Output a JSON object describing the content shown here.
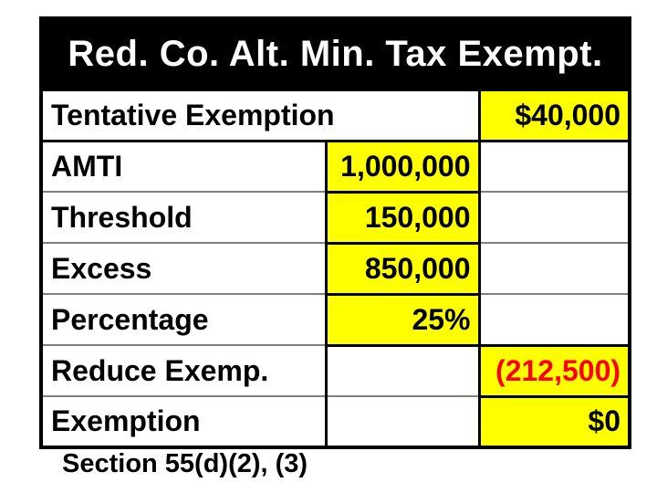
{
  "slide": {
    "title": "Red. Co. Alt. Min. Tax Exempt.",
    "footnote": "Section 55(d)(2), (3)"
  },
  "table": {
    "rows": [
      {
        "label": "Tentative Exemption",
        "middle": "",
        "right": "$40,000"
      },
      {
        "label": "AMTI",
        "middle": "1,000,000",
        "right": ""
      },
      {
        "label": "Threshold",
        "middle": "150,000",
        "right": ""
      },
      {
        "label": "Excess",
        "middle": "850,000",
        "right": ""
      },
      {
        "label": "Percentage",
        "middle": "25%",
        "right": ""
      },
      {
        "label": "Reduce Exemp.",
        "middle": "",
        "right": "(212,500)"
      },
      {
        "label": "Exemption",
        "middle": "",
        "right": "$0"
      }
    ]
  },
  "colors": {
    "highlight": "#FFFF00",
    "negative": "#FF0000",
    "header-bg": "#000000",
    "header-text": "#FFFFFF",
    "grid-thin": "#808080",
    "grid-thick": "#000000"
  }
}
